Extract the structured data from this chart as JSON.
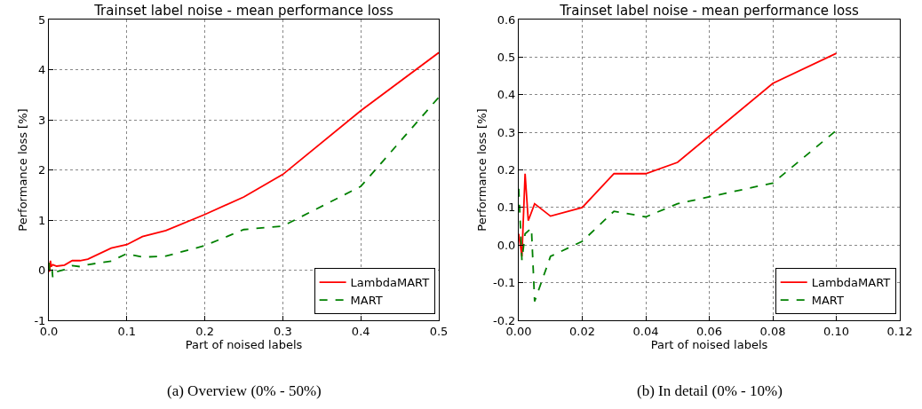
{
  "chart_data": [
    {
      "type": "line",
      "title": "Trainset label noise - mean performance loss",
      "xlabel": "Part of noised labels",
      "ylabel": "Performance loss [%]",
      "annotations": [
        "(a) Overview (0% - 50%)"
      ],
      "xlim": [
        0,
        0.5
      ],
      "xticks": [
        {
          "value": 0,
          "label": "0.0"
        },
        0.1,
        0.2,
        0.3,
        0.4,
        0.5
      ],
      "ylim": [
        -1,
        5
      ],
      "yticks": [
        -1,
        0,
        1,
        2,
        3,
        4,
        5
      ],
      "grid": true,
      "legend": "bottom right",
      "series": [
        {
          "name": "LambdaMART",
          "color": "#ff0000",
          "line_style": "solid",
          "x": [
            0,
            0.001,
            0.002,
            0.003,
            0.005,
            0.01,
            0.02,
            0.03,
            0.04,
            0.05,
            0.08,
            0.1,
            0.12,
            0.15,
            0.2,
            0.25,
            0.3,
            0.4,
            0.5
          ],
          "values": [
            0.03,
            -0.03,
            0.19,
            0.07,
            0.11,
            0.08,
            0.1,
            0.19,
            0.19,
            0.22,
            0.44,
            0.51,
            0.67,
            0.79,
            1.11,
            1.46,
            1.91,
            3.18,
            4.34
          ]
        },
        {
          "name": "MART",
          "color": "#008000",
          "line_style": "dashed",
          "x": [
            0,
            0.001,
            0.002,
            0.004,
            0.005,
            0.01,
            0.02,
            0.03,
            0.04,
            0.05,
            0.08,
            0.1,
            0.12,
            0.15,
            0.2,
            0.25,
            0.3,
            0.4,
            0.5
          ],
          "values": [
            0.15,
            -0.04,
            0.03,
            0.04,
            -0.15,
            -0.03,
            0.01,
            0.09,
            0.07,
            0.11,
            0.18,
            0.33,
            0.26,
            0.28,
            0.49,
            0.81,
            0.88,
            1.67,
            3.45
          ]
        }
      ]
    },
    {
      "type": "line",
      "title": "Trainset label noise - mean performance loss",
      "xlabel": "Part of noised labels",
      "ylabel": "Performance loss [%]",
      "annotations": [
        "(b) In detail (0% - 10%)"
      ],
      "xlim": [
        0,
        0.12
      ],
      "xticks": [
        {
          "value": 0,
          "label": "0.00"
        },
        {
          "value": 0.02,
          "label": "0.02"
        },
        {
          "value": 0.04,
          "label": "0.04"
        },
        {
          "value": 0.06,
          "label": "0.06"
        },
        {
          "value": 0.08,
          "label": "0.08"
        },
        {
          "value": 0.1,
          "label": "0.10"
        },
        {
          "value": 0.12,
          "label": "0.12"
        }
      ],
      "ylim": [
        -0.2,
        0.6
      ],
      "yticks": [
        -0.2,
        -0.1,
        {
          "value": 0,
          "label": "0.0"
        },
        0.1,
        0.2,
        0.3,
        0.4,
        0.5,
        0.6
      ],
      "grid": true,
      "legend": "bottom right",
      "series": [
        {
          "name": "LambdaMART",
          "color": "#ff0000",
          "line_style": "solid",
          "x": [
            0,
            0.001,
            0.002,
            0.003,
            0.005,
            0.01,
            0.02,
            0.03,
            0.04,
            0.05,
            0.08,
            0.1
          ],
          "values": [
            0.03,
            -0.03,
            0.19,
            0.065,
            0.11,
            0.077,
            0.1,
            0.19,
            0.19,
            0.22,
            0.43,
            0.51
          ]
        },
        {
          "name": "MART",
          "color": "#008000",
          "line_style": "dashed",
          "x": [
            0,
            0.001,
            0.002,
            0.004,
            0.005,
            0.01,
            0.02,
            0.03,
            0.04,
            0.05,
            0.08,
            0.1
          ],
          "values": [
            0.15,
            -0.04,
            0.03,
            0.045,
            -0.15,
            -0.03,
            0.01,
            0.09,
            0.075,
            0.11,
            0.165,
            0.305
          ]
        }
      ]
    }
  ]
}
